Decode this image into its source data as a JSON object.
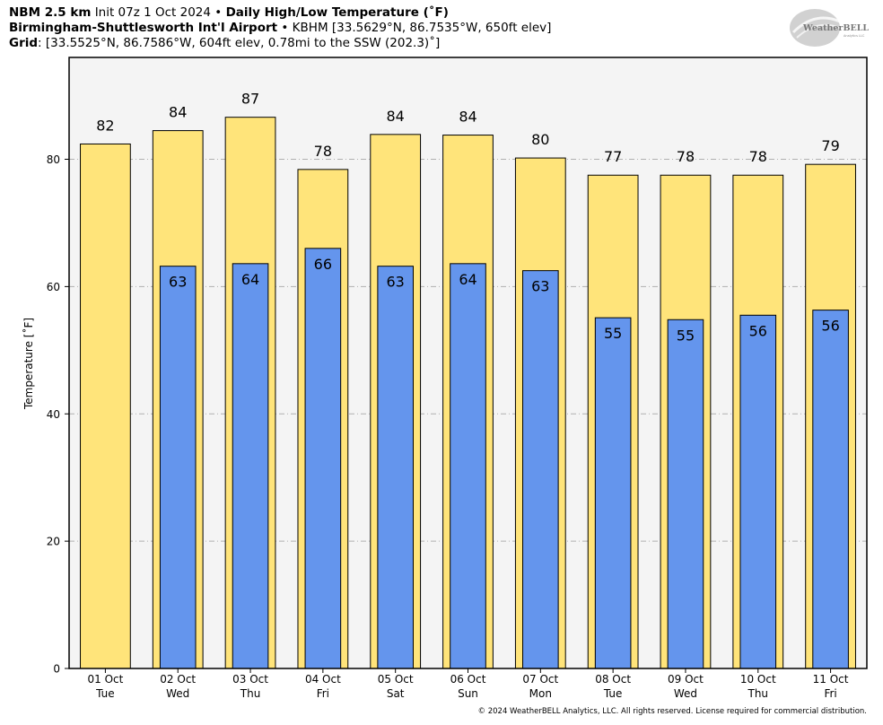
{
  "header": {
    "model": "NBM 2.5 km",
    "init": "Init 07z 1 Oct 2024",
    "bullet": "•",
    "product": "Daily High/Low Temperature (˚F)",
    "station_name": "Birmingham-Shuttlesworth Int'l Airport",
    "station_info": "KBHM [33.5629°N, 86.7535°W, 650ft elev]",
    "grid_label": "Grid",
    "grid_info": ": [33.5525°N, 86.7586°W, 604ft elev, 0.78mi to the SSW (202.3)˚]"
  },
  "logo": {
    "text_main": "WeatherBELL",
    "text_sub": "Analytics LLC"
  },
  "chart_data": {
    "type": "bar",
    "ylabel": "Temperature [˚F]",
    "ylim": [
      0,
      96
    ],
    "yticks": [
      0,
      20,
      40,
      60,
      80
    ],
    "grid": true,
    "categories": [
      {
        "date": "01 Oct",
        "day": "Tue"
      },
      {
        "date": "02 Oct",
        "day": "Wed"
      },
      {
        "date": "03 Oct",
        "day": "Thu"
      },
      {
        "date": "04 Oct",
        "day": "Fri"
      },
      {
        "date": "05 Oct",
        "day": "Sat"
      },
      {
        "date": "06 Oct",
        "day": "Sun"
      },
      {
        "date": "07 Oct",
        "day": "Mon"
      },
      {
        "date": "08 Oct",
        "day": "Tue"
      },
      {
        "date": "09 Oct",
        "day": "Wed"
      },
      {
        "date": "10 Oct",
        "day": "Thu"
      },
      {
        "date": "11 Oct",
        "day": "Fri"
      }
    ],
    "series": [
      {
        "key": "high",
        "color": "#FFE47A",
        "values": [
          82.4,
          84.5,
          86.6,
          78.4,
          83.9,
          83.8,
          80.2,
          77.5,
          77.5,
          77.5,
          79.2
        ],
        "labels": [
          "82",
          "84",
          "87",
          "78",
          "84",
          "84",
          "80",
          "77",
          "78",
          "78",
          "79"
        ]
      },
      {
        "key": "low",
        "color": "#6495ED",
        "values": [
          null,
          63.2,
          63.6,
          66.0,
          63.2,
          63.6,
          62.5,
          55.1,
          54.8,
          55.5,
          56.3
        ],
        "labels": [
          "",
          "63",
          "64",
          "66",
          "63",
          "64",
          "63",
          "55",
          "55",
          "56",
          "56"
        ]
      }
    ],
    "plot_background": "#F4F4F4"
  },
  "footer": "© 2024 WeatherBELL Analytics, LLC. All rights reserved. License required for commercial distribution."
}
